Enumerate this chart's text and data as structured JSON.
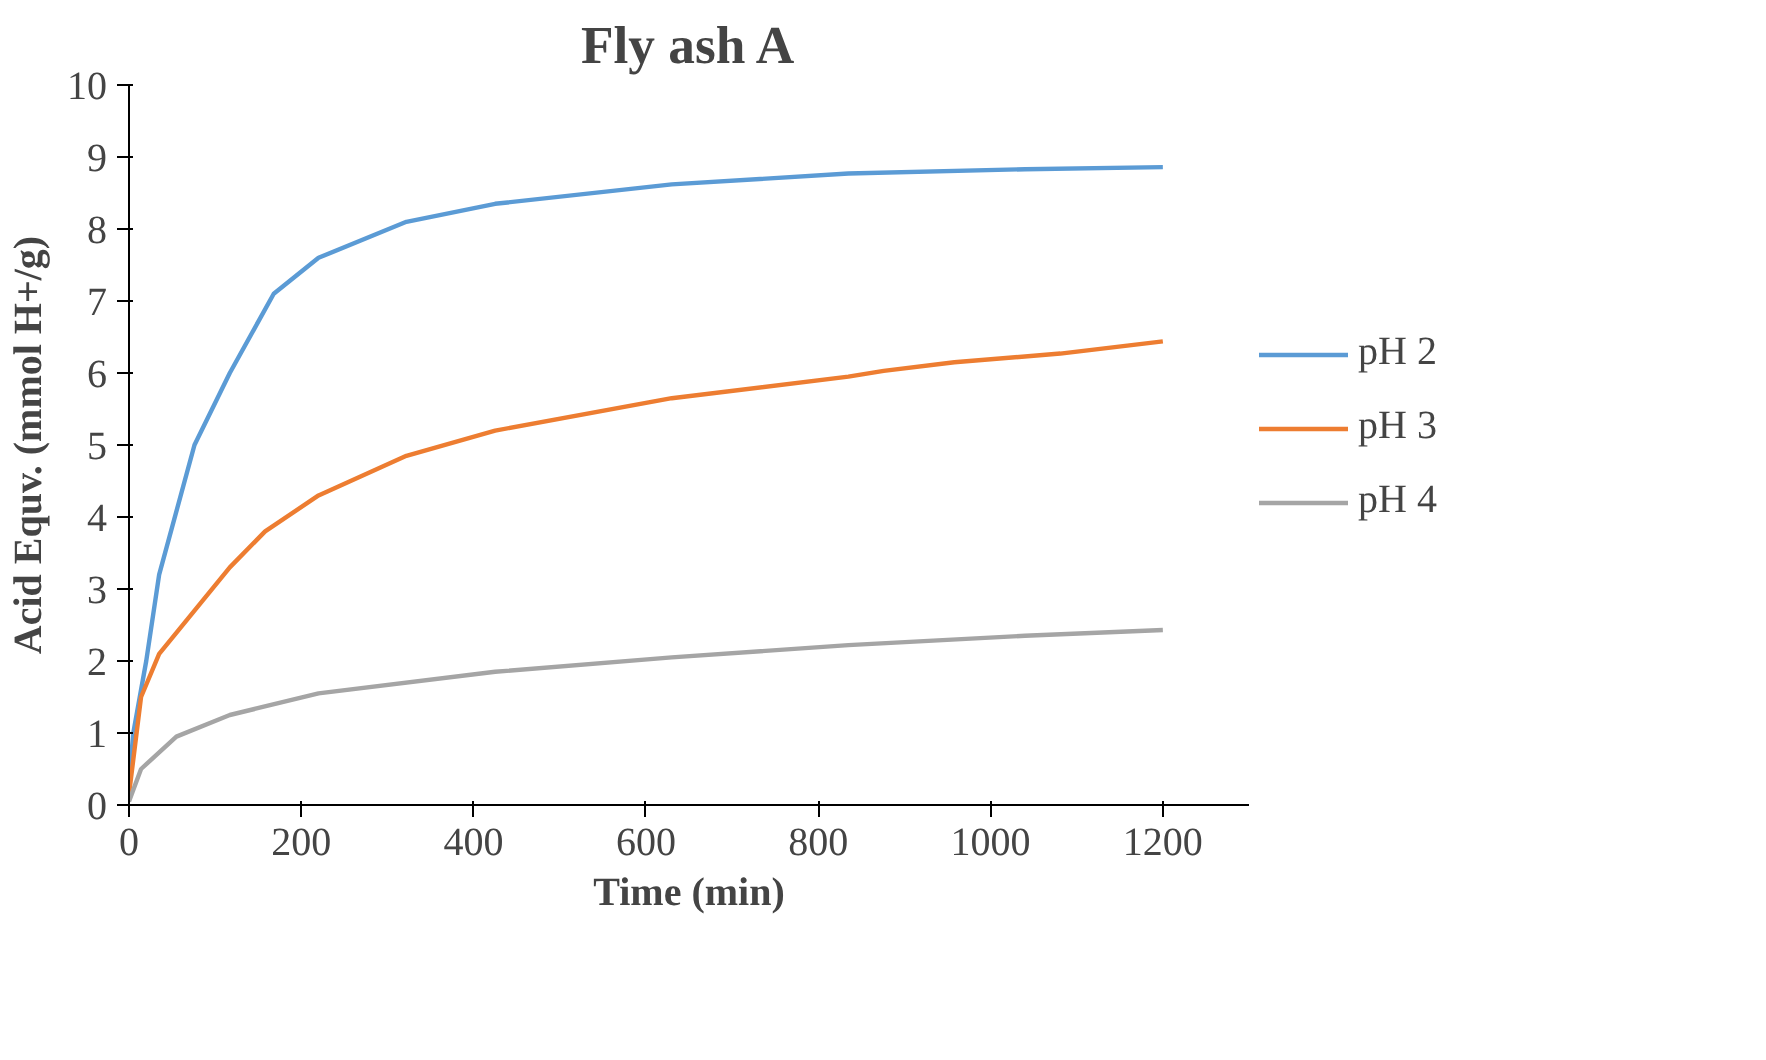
{
  "chart_data": {
    "type": "line",
    "title": "Fly ash A",
    "xlabel": "Time (min)",
    "ylabel": "Acid Equv. (mmol H+/g)",
    "xlim": [
      0,
      1300
    ],
    "xticks": [
      0,
      200,
      400,
      600,
      800,
      1000,
      1200
    ],
    "ylim": [
      0,
      10
    ],
    "yticks": [
      0,
      1,
      2,
      3,
      4,
      5,
      6,
      7,
      8,
      9,
      10
    ],
    "grid": false,
    "legend": "right",
    "marker": "none",
    "line_style": "solid",
    "series": [
      {
        "name": "pH 2",
        "color": "#5b9bd5",
        "x": [
          0,
          5,
          20,
          35,
          76,
          117,
          168,
          220,
          322,
          425,
          630,
          835,
          1040,
          1200
        ],
        "values": [
          0.3,
          1.0,
          2.0,
          3.2,
          5.0,
          6.0,
          7.1,
          7.6,
          8.1,
          8.35,
          8.62,
          8.77,
          8.83,
          8.86
        ]
      },
      {
        "name": "pH 3",
        "color": "#ed7d31",
        "x": [
          0,
          14,
          35,
          76,
          117,
          158,
          220,
          322,
          425,
          630,
          835,
          876,
          958,
          1081,
          1200
        ],
        "values": [
          0.15,
          1.5,
          2.1,
          2.7,
          3.3,
          3.8,
          4.3,
          4.85,
          5.2,
          5.65,
          5.95,
          6.03,
          6.15,
          6.27,
          6.44
        ]
      },
      {
        "name": "pH 4",
        "color": "#a5a5a5",
        "x": [
          0,
          14,
          55,
          117,
          220,
          425,
          630,
          835,
          1040,
          1200
        ],
        "values": [
          0.05,
          0.5,
          0.95,
          1.25,
          1.55,
          1.85,
          2.05,
          2.22,
          2.35,
          2.43
        ]
      }
    ]
  }
}
